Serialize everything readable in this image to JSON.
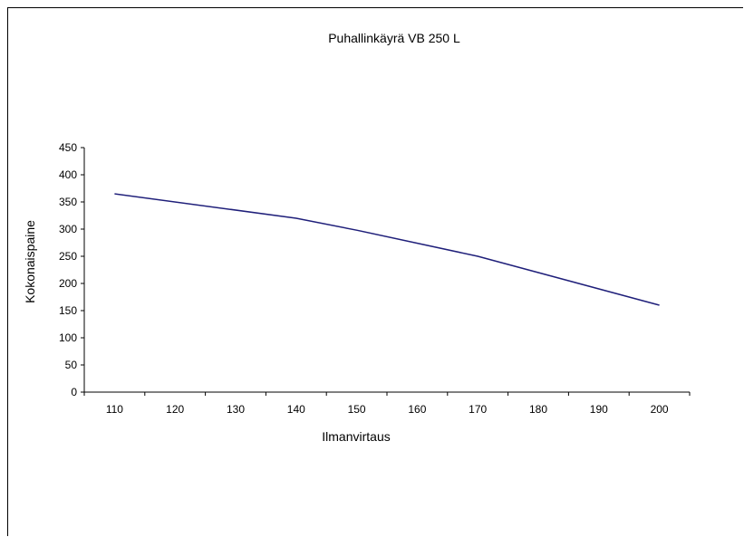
{
  "chart_data": {
    "type": "line",
    "title": "Puhallinkäyrä VB 250 L",
    "xlabel": "Ilmanvirtaus",
    "ylabel": "Kokonaispaine",
    "categories": [
      "110",
      "120",
      "130",
      "140",
      "150",
      "160",
      "170",
      "180",
      "190",
      "200"
    ],
    "y_ticks": [
      0,
      50,
      100,
      150,
      200,
      250,
      300,
      350,
      400,
      450
    ],
    "ylim": [
      0,
      450
    ],
    "grid": false,
    "legend": "none",
    "series": [
      {
        "color": "#1f1f7a",
        "x": [
          110,
          140,
          150,
          170,
          200
        ],
        "values": [
          365,
          320,
          298,
          250,
          160
        ]
      }
    ]
  }
}
